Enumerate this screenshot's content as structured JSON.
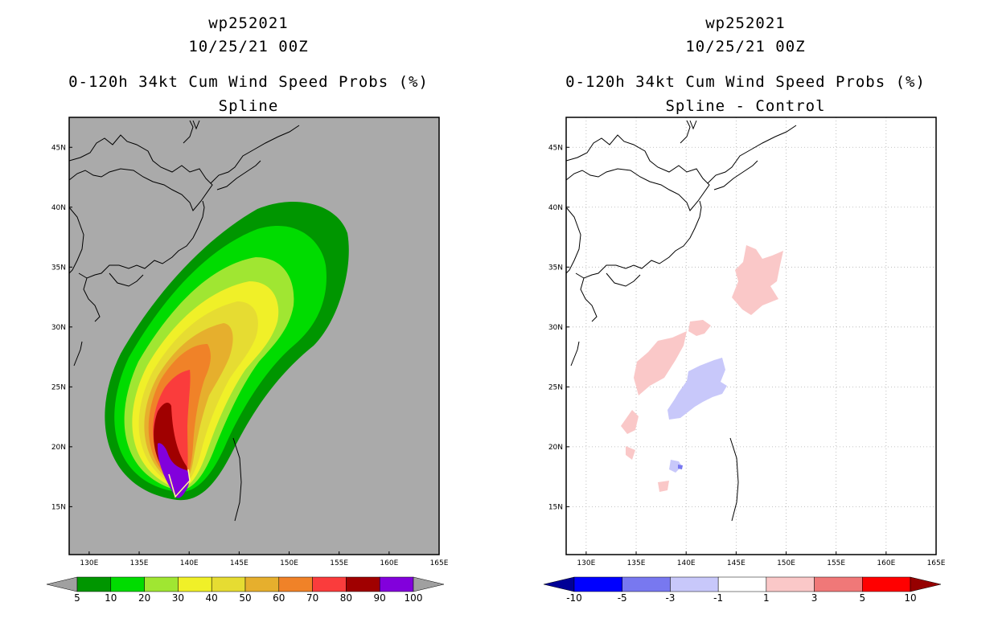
{
  "left": {
    "storm_id": "wp252021",
    "datetime": "10/25/21 00Z",
    "product": "0-120h 34kt Cum Wind Speed Probs (%)",
    "subtitle": "Spline",
    "background_color": "#aaaaaa",
    "colorbar": {
      "labels": [
        "5",
        "10",
        "20",
        "30",
        "40",
        "50",
        "60",
        "70",
        "80",
        "90",
        "100"
      ],
      "colors": [
        "#009600",
        "#00dc00",
        "#a0e632",
        "#f0f028",
        "#e6dc32",
        "#e6af2d",
        "#f08228",
        "#fa3c3c",
        "#a00000",
        "#8200dc"
      ],
      "end_left": "#a0a0a0",
      "end_right": "#a0a0a0"
    }
  },
  "right": {
    "storm_id": "wp252021",
    "datetime": "10/25/21 00Z",
    "product": "0-120h 34kt Cum Wind Speed Probs (%)",
    "subtitle": "Spline - Control",
    "background_color": "#ffffff",
    "colorbar": {
      "labels": [
        "-10",
        "-5",
        "-3",
        "-1",
        "1",
        "3",
        "5",
        "10"
      ],
      "colors": [
        "#0000ff",
        "#7878f0",
        "#c8c8fa",
        "#ffffff",
        "#fac8c8",
        "#f07878",
        "#ff0000"
      ],
      "end_left": "#000096",
      "end_right": "#960000"
    }
  },
  "axes": {
    "x_ticks": [
      "130E",
      "135E",
      "140E",
      "145E",
      "150E",
      "155E",
      "160E",
      "165E"
    ],
    "y_ticks": [
      "15N",
      "20N",
      "25N",
      "30N",
      "35N",
      "40N",
      "45N"
    ],
    "lon_range": [
      128,
      165
    ],
    "lat_range": [
      11,
      47.5
    ]
  },
  "icons": {
    "coastline": "coastline-icon",
    "colorbar_arrow": "triangle-icon"
  }
}
